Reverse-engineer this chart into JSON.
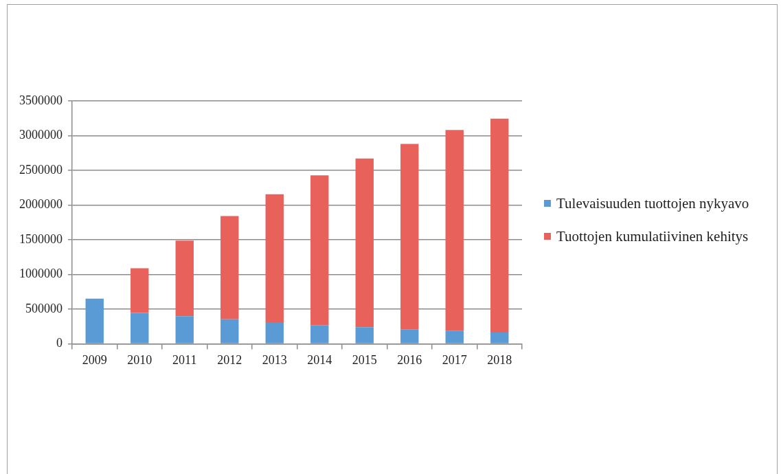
{
  "chart_data": {
    "type": "bar",
    "stacked": true,
    "categories": [
      "2009",
      "2010",
      "2011",
      "2012",
      "2013",
      "2014",
      "2015",
      "2016",
      "2017",
      "2018"
    ],
    "series": [
      {
        "name": "Tulevaisuuden tuottojen nykyavo",
        "color": "#5b9bd5",
        "values": [
          650000,
          444000,
          397000,
          354000,
          310000,
          270000,
          239000,
          205000,
          185000,
          162000
        ]
      },
      {
        "name": "Tuottojen kumulatiivinen kehitys",
        "color": "#e8615b",
        "values": [
          null,
          644000,
          1091000,
          1488000,
          1845000,
          2158000,
          2431000,
          2677000,
          2896000,
          3084000
        ]
      }
    ],
    "ylim": [
      0,
      3500000
    ],
    "yticks": [
      0,
      500000,
      1000000,
      1500000,
      2000000,
      2500000,
      3000000,
      3500000
    ],
    "grid": "y",
    "legend": "right"
  }
}
